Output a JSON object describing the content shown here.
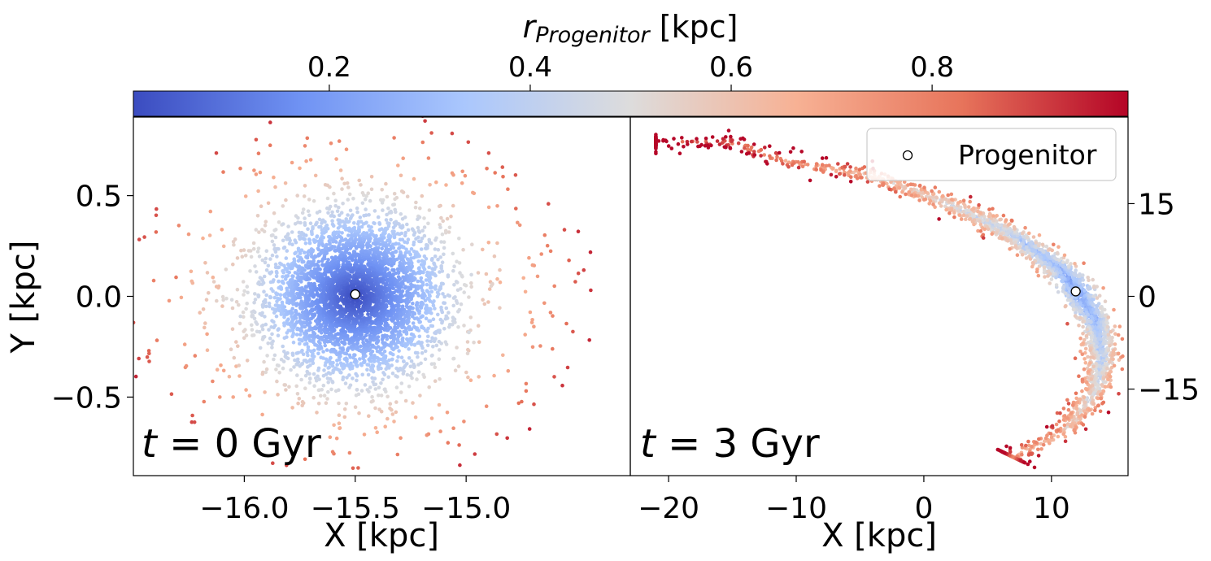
{
  "colorbar": {
    "label_main": "r",
    "label_sub": "Progenitor",
    "label_unit": " [kpc]",
    "ticks": [
      0.2,
      0.4,
      0.6,
      0.8
    ],
    "tick_labels": [
      "0.2",
      "0.4",
      "0.6",
      "0.8"
    ],
    "range": [
      0.005,
      0.995
    ],
    "colormap": "coolwarm",
    "stops": [
      "#3b4cc0",
      "#6f92f3",
      "#aac7fd",
      "#dddcdc",
      "#f7b194",
      "#e7745b",
      "#b40426"
    ]
  },
  "legend": {
    "label": "Progenitor",
    "position": "top-right"
  },
  "chart_data": [
    {
      "type": "scatter",
      "panel": "left",
      "annotation": "t = 0 Gyr",
      "annotation_t": "t",
      "annotation_rest": " = 0 Gyr",
      "xlabel": "X [kpc]",
      "ylabel": "Y [kpc]",
      "xlim": [
        -16.5,
        -14.26
      ],
      "ylim": [
        -0.89,
        0.89
      ],
      "xticks": [
        -16.0,
        -15.5,
        -15.0
      ],
      "xtick_labels": [
        "−16.0",
        "−15.5",
        "−15.0"
      ],
      "yticks": [
        -0.5,
        0.0,
        0.5
      ],
      "ytick_labels": [
        "−0.5",
        "0.0",
        "0.5"
      ],
      "progenitor": {
        "x": -15.5,
        "y": 0.01
      },
      "series": [
        {
          "distribution": "approximately Gaussian cloud around the progenitor, color by r_Progenitor",
          "center": [
            -15.5,
            0.0
          ],
          "spread_kpc": [
            0.2,
            0.2
          ],
          "max_r_kpc": 0.95
        }
      ]
    },
    {
      "type": "scatter",
      "panel": "right",
      "annotation": "t = 3 Gyr",
      "annotation_t": "t",
      "annotation_rest": " = 3 Gyr",
      "xlabel": "X [kpc]",
      "ylabel": "",
      "xlim": [
        -23,
        16
      ],
      "ylim": [
        -29,
        29
      ],
      "xticks": [
        -20,
        -10,
        0,
        10
      ],
      "xtick_labels": [
        "−20",
        "−10",
        "0",
        "10"
      ],
      "yticks": [
        -15,
        0,
        15
      ],
      "ytick_labels": [
        "−15",
        "0",
        "15"
      ],
      "yaxis_side": "right",
      "progenitor": {
        "x": 11.9,
        "y": 0.8
      },
      "series": [
        {
          "distribution": "arc-shaped tidal stream, color by r_Progenitor",
          "path": [
            [
              -21,
              25
            ],
            [
              -15,
              25
            ],
            [
              -11,
              22
            ],
            [
              -4,
              19.5
            ],
            [
              2,
              15
            ],
            [
              7,
              10
            ],
            [
              11,
              4
            ],
            [
              13.5,
              -4
            ],
            [
              14,
              -10
            ],
            [
              13.5,
              -15
            ],
            [
              11,
              -22
            ],
            [
              7,
              -26
            ]
          ]
        }
      ]
    }
  ]
}
